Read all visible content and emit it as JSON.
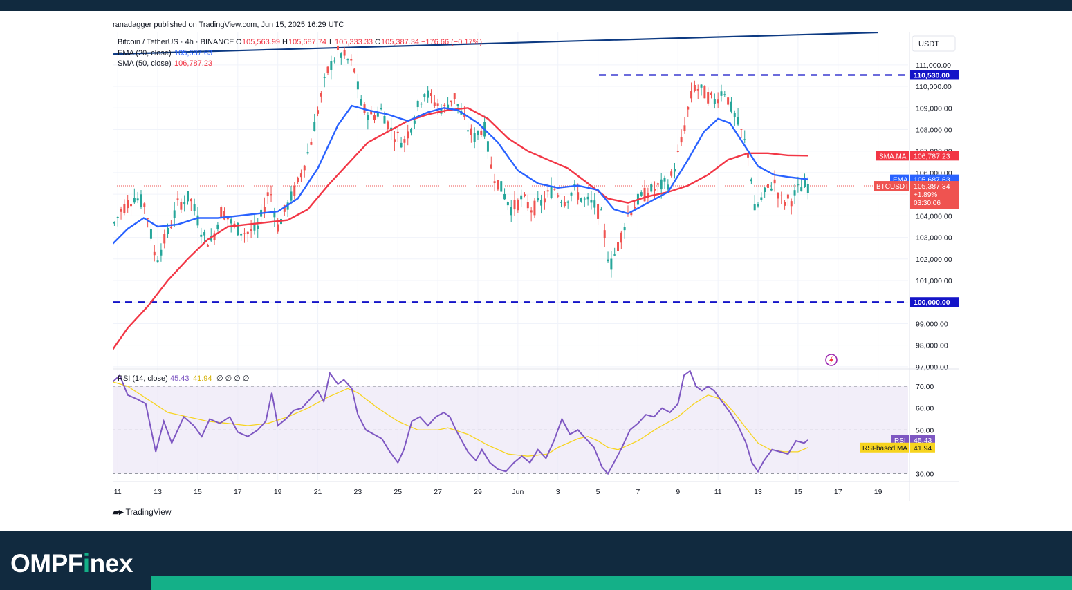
{
  "publisher_line": "ranadagger published on TradingView.com, Jun 15, 2025 16:29 UTC",
  "brand": {
    "part1": "OMPF",
    "accent": "i",
    "part2": "nex"
  },
  "tradingview_label": "TradingView",
  "colors": {
    "up": "#26a69a",
    "down": "#ef5350",
    "ema": "#2962ff",
    "sma": "#f23645",
    "trendline": "#0d3a82",
    "level": "#1414c8",
    "rsi": "#7e57c2",
    "rsi_ma": "#f7d41f",
    "rsi_band": "#ede7f6",
    "background_top": "#112a3f",
    "brand_accent": "#14b088"
  },
  "chart_data": {
    "type": "candlestick",
    "symbol_header": {
      "name": "Bitcoin / TetherUS · 4h · BINANCE",
      "open_label": "O",
      "open": "105,563.99",
      "high_label": "H",
      "high": "105,687.74",
      "low_label": "L",
      "low": "105,333.33",
      "close_label": "C",
      "close": "105,387.34",
      "change": "−176.66 (−0.17%)"
    },
    "indicators": [
      {
        "label": "EMA (20, close)",
        "value": "105,687.63"
      },
      {
        "label": "SMA (50, close)",
        "value": "106,787.23"
      }
    ],
    "y_axis": {
      "unit": "USDT",
      "range": [
        96900,
        112500
      ],
      "ticks": [
        "97,000.00",
        "98,000.00",
        "99,000.00",
        "100,000.00",
        "101,000.00",
        "102,000.00",
        "103,000.00",
        "104,000.00",
        "105,000.00",
        "106,000.00",
        "107,000.00",
        "108,000.00",
        "109,000.00",
        "110,000.00",
        "111,000.00"
      ]
    },
    "x_axis": {
      "range": [
        10.75,
        50.5
      ],
      "ticks": [
        {
          "t": 11,
          "label": "11"
        },
        {
          "t": 13,
          "label": "13"
        },
        {
          "t": 15,
          "label": "15"
        },
        {
          "t": 17,
          "label": "17"
        },
        {
          "t": 19,
          "label": "19"
        },
        {
          "t": 21,
          "label": "21"
        },
        {
          "t": 23,
          "label": "23"
        },
        {
          "t": 25,
          "label": "25"
        },
        {
          "t": 27,
          "label": "27"
        },
        {
          "t": 29,
          "label": "29"
        },
        {
          "t": 31,
          "label": "Jun"
        },
        {
          "t": 33,
          "label": "3"
        },
        {
          "t": 35,
          "label": "5"
        },
        {
          "t": 37,
          "label": "7"
        },
        {
          "t": 39,
          "label": "9"
        },
        {
          "t": 41,
          "label": "11"
        },
        {
          "t": 43,
          "label": "13"
        },
        {
          "t": 45,
          "label": "15"
        },
        {
          "t": 47,
          "label": "17"
        },
        {
          "t": 49,
          "label": "19"
        }
      ]
    },
    "price_path": [
      [
        10.75,
        103500
      ],
      [
        11.2,
        104300
      ],
      [
        11.8,
        104900
      ],
      [
        12.4,
        104500
      ],
      [
        12.9,
        101900
      ],
      [
        13.5,
        103200
      ],
      [
        14.0,
        104500
      ],
      [
        14.6,
        104900
      ],
      [
        15.3,
        103000
      ],
      [
        15.7,
        102800
      ],
      [
        16.2,
        104300
      ],
      [
        16.8,
        103500
      ],
      [
        17.4,
        103200
      ],
      [
        18.0,
        103400
      ],
      [
        18.6,
        105300
      ],
      [
        19.0,
        103500
      ],
      [
        19.5,
        104500
      ],
      [
        20.0,
        105500
      ],
      [
        20.6,
        107200
      ],
      [
        21.1,
        109300
      ],
      [
        21.5,
        110700
      ],
      [
        22.0,
        111600
      ],
      [
        22.4,
        111300
      ],
      [
        22.8,
        110900
      ],
      [
        23.2,
        109000
      ],
      [
        23.7,
        108600
      ],
      [
        24.2,
        108900
      ],
      [
        24.7,
        107900
      ],
      [
        25.3,
        107400
      ],
      [
        25.8,
        108500
      ],
      [
        26.3,
        109800
      ],
      [
        26.8,
        109300
      ],
      [
        27.3,
        108900
      ],
      [
        27.8,
        109600
      ],
      [
        28.4,
        108200
      ],
      [
        28.8,
        107600
      ],
      [
        29.3,
        108200
      ],
      [
        29.7,
        106100
      ],
      [
        30.2,
        105200
      ],
      [
        30.7,
        104300
      ],
      [
        31.2,
        104800
      ],
      [
        31.7,
        104300
      ],
      [
        32.2,
        104600
      ],
      [
        32.8,
        105300
      ],
      [
        33.3,
        104700
      ],
      [
        33.8,
        105200
      ],
      [
        34.3,
        104700
      ],
      [
        34.8,
        104500
      ],
      [
        35.2,
        103900
      ],
      [
        35.6,
        101600
      ],
      [
        36.0,
        102600
      ],
      [
        36.5,
        104100
      ],
      [
        37.0,
        104700
      ],
      [
        37.5,
        105100
      ],
      [
        38.0,
        105300
      ],
      [
        38.6,
        105600
      ],
      [
        39.1,
        107100
      ],
      [
        39.5,
        108900
      ],
      [
        39.8,
        110000
      ],
      [
        40.3,
        109700
      ],
      [
        40.8,
        109300
      ],
      [
        41.3,
        109900
      ],
      [
        41.7,
        108900
      ],
      [
        42.2,
        107800
      ],
      [
        42.6,
        106600
      ],
      [
        42.8,
        104200
      ],
      [
        43.0,
        104500
      ],
      [
        43.4,
        105100
      ],
      [
        43.8,
        105600
      ],
      [
        44.2,
        104600
      ],
      [
        44.7,
        104800
      ],
      [
        45.1,
        105300
      ],
      [
        45.5,
        105400
      ]
    ],
    "ema20": [
      [
        10.75,
        102700
      ],
      [
        11.5,
        103400
      ],
      [
        12.3,
        103900
      ],
      [
        13.0,
        103500
      ],
      [
        14.0,
        103600
      ],
      [
        15.0,
        103900
      ],
      [
        16.0,
        103900
      ],
      [
        17.0,
        104000
      ],
      [
        18.0,
        104100
      ],
      [
        19.0,
        104200
      ],
      [
        20.0,
        104800
      ],
      [
        21.0,
        106200
      ],
      [
        22.0,
        108200
      ],
      [
        22.7,
        109100
      ],
      [
        23.5,
        108900
      ],
      [
        24.5,
        108700
      ],
      [
        25.5,
        108400
      ],
      [
        26.5,
        108800
      ],
      [
        27.3,
        109000
      ],
      [
        28.0,
        108900
      ],
      [
        29.0,
        108300
      ],
      [
        30.0,
        107400
      ],
      [
        31.0,
        106100
      ],
      [
        32.0,
        105500
      ],
      [
        33.0,
        105300
      ],
      [
        34.0,
        105400
      ],
      [
        35.0,
        105200
      ],
      [
        35.8,
        104300
      ],
      [
        36.5,
        104100
      ],
      [
        37.5,
        104600
      ],
      [
        38.5,
        105100
      ],
      [
        39.5,
        106600
      ],
      [
        40.3,
        107900
      ],
      [
        41.0,
        108500
      ],
      [
        41.6,
        108300
      ],
      [
        42.3,
        107300
      ],
      [
        43.0,
        106300
      ],
      [
        43.8,
        105900
      ],
      [
        44.5,
        105800
      ],
      [
        45.5,
        105690
      ]
    ],
    "sma50": [
      [
        10.75,
        97800
      ],
      [
        11.5,
        98800
      ],
      [
        12.5,
        99800
      ],
      [
        13.5,
        101000
      ],
      [
        14.5,
        102000
      ],
      [
        15.5,
        102900
      ],
      [
        16.5,
        103500
      ],
      [
        17.5,
        103600
      ],
      [
        18.5,
        103700
      ],
      [
        19.5,
        103800
      ],
      [
        20.5,
        104300
      ],
      [
        21.5,
        105400
      ],
      [
        22.5,
        106400
      ],
      [
        23.5,
        107400
      ],
      [
        24.5,
        107900
      ],
      [
        25.5,
        108400
      ],
      [
        26.5,
        108700
      ],
      [
        27.5,
        108900
      ],
      [
        28.5,
        109000
      ],
      [
        29.5,
        108500
      ],
      [
        30.5,
        107600
      ],
      [
        31.5,
        107000
      ],
      [
        32.5,
        106600
      ],
      [
        33.5,
        106200
      ],
      [
        34.5,
        105500
      ],
      [
        35.5,
        104800
      ],
      [
        36.5,
        104600
      ],
      [
        37.5,
        104900
      ],
      [
        38.5,
        105100
      ],
      [
        39.5,
        105400
      ],
      [
        40.5,
        105900
      ],
      [
        41.5,
        106600
      ],
      [
        42.5,
        106900
      ],
      [
        43.5,
        106900
      ],
      [
        44.5,
        106800
      ],
      [
        45.5,
        106790
      ]
    ],
    "levels": [
      {
        "value": 110530,
        "label": "110,530.00",
        "from": 35.05
      },
      {
        "value": 100000,
        "label": "100,000.00",
        "from": 10.75
      }
    ],
    "trendline": {
      "from": [
        10.75,
        111500
      ],
      "to": [
        49.0,
        112500
      ]
    },
    "current_price_tag": {
      "symbol": "BTCUSDT",
      "price": "105,387.34",
      "change": "+1.89%",
      "countdown": "03:30:06"
    },
    "ema_tag": {
      "label": "EMA",
      "value": "105,687.63"
    },
    "sma_tag": {
      "label": "SMA:MA",
      "value": "106,787.23"
    },
    "rsi_panel": {
      "header_label": "RSI (14, close)",
      "rsi_value": "45.43",
      "ma_value": "41.94",
      "extra": "∅ ∅ ∅ ∅",
      "range": [
        27,
        77
      ],
      "ticks": [
        "30.00",
        "50.00",
        "60.00",
        "70.00"
      ],
      "band": [
        30,
        70
      ],
      "rsi_tag": {
        "label": "RSI",
        "value": "45.43"
      },
      "ma_tag": {
        "label": "RSI-based MA",
        "value": "41.94"
      },
      "rsi_points": [
        [
          10.75,
          72
        ],
        [
          11.1,
          75
        ],
        [
          11.5,
          66
        ],
        [
          12.0,
          64
        ],
        [
          12.4,
          62
        ],
        [
          12.9,
          40
        ],
        [
          13.3,
          54
        ],
        [
          13.7,
          44
        ],
        [
          14.3,
          56
        ],
        [
          14.8,
          52
        ],
        [
          15.2,
          47
        ],
        [
          15.6,
          55
        ],
        [
          16.1,
          53
        ],
        [
          16.6,
          56
        ],
        [
          17.0,
          49
        ],
        [
          17.5,
          47
        ],
        [
          18.0,
          50
        ],
        [
          18.4,
          54
        ],
        [
          18.7,
          67
        ],
        [
          19.0,
          52
        ],
        [
          19.4,
          55
        ],
        [
          19.8,
          59
        ],
        [
          20.2,
          60
        ],
        [
          20.6,
          64
        ],
        [
          21.0,
          68
        ],
        [
          21.3,
          63
        ],
        [
          21.6,
          76
        ],
        [
          22.0,
          71
        ],
        [
          22.3,
          73
        ],
        [
          22.7,
          69
        ],
        [
          23.0,
          57
        ],
        [
          23.4,
          50
        ],
        [
          23.8,
          48
        ],
        [
          24.2,
          46
        ],
        [
          24.6,
          40
        ],
        [
          25.0,
          35
        ],
        [
          25.3,
          41
        ],
        [
          25.7,
          54
        ],
        [
          26.1,
          56
        ],
        [
          26.5,
          52
        ],
        [
          26.9,
          56
        ],
        [
          27.3,
          58
        ],
        [
          27.6,
          56
        ],
        [
          27.9,
          50
        ],
        [
          28.2,
          45
        ],
        [
          28.5,
          40
        ],
        [
          28.9,
          36
        ],
        [
          29.2,
          41
        ],
        [
          29.6,
          35
        ],
        [
          30.0,
          32
        ],
        [
          30.4,
          31
        ],
        [
          30.8,
          35
        ],
        [
          31.2,
          38
        ],
        [
          31.6,
          35
        ],
        [
          32.0,
          41
        ],
        [
          32.4,
          37
        ],
        [
          32.8,
          45
        ],
        [
          33.2,
          55
        ],
        [
          33.6,
          48
        ],
        [
          34.0,
          50
        ],
        [
          34.4,
          46
        ],
        [
          34.8,
          42
        ],
        [
          35.2,
          33
        ],
        [
          35.5,
          30
        ],
        [
          35.8,
          35
        ],
        [
          36.2,
          42
        ],
        [
          36.6,
          50
        ],
        [
          37.0,
          53
        ],
        [
          37.4,
          57
        ],
        [
          37.8,
          56
        ],
        [
          38.2,
          60
        ],
        [
          38.6,
          58
        ],
        [
          39.0,
          62
        ],
        [
          39.3,
          75
        ],
        [
          39.6,
          77
        ],
        [
          39.9,
          70
        ],
        [
          40.2,
          68
        ],
        [
          40.5,
          70
        ],
        [
          40.8,
          68
        ],
        [
          41.2,
          63
        ],
        [
          41.6,
          58
        ],
        [
          42.0,
          52
        ],
        [
          42.4,
          44
        ],
        [
          42.7,
          35
        ],
        [
          43.0,
          31
        ],
        [
          43.3,
          36
        ],
        [
          43.7,
          41
        ],
        [
          44.1,
          40
        ],
        [
          44.5,
          39
        ],
        [
          44.9,
          45
        ],
        [
          45.3,
          44
        ],
        [
          45.5,
          45.4
        ]
      ],
      "ma_points": [
        [
          10.75,
          72
        ],
        [
          11.5,
          70
        ],
        [
          12.5,
          64
        ],
        [
          13.5,
          58
        ],
        [
          14.5,
          56
        ],
        [
          15.5,
          54
        ],
        [
          16.5,
          53
        ],
        [
          17.5,
          52
        ],
        [
          18.5,
          53
        ],
        [
          19.5,
          56
        ],
        [
          20.5,
          60
        ],
        [
          21.5,
          65
        ],
        [
          22.5,
          69
        ],
        [
          23.0,
          67
        ],
        [
          24.0,
          60
        ],
        [
          25.0,
          54
        ],
        [
          26.0,
          50
        ],
        [
          27.0,
          50
        ],
        [
          27.5,
          51
        ],
        [
          28.5,
          48
        ],
        [
          29.5,
          43
        ],
        [
          30.5,
          39
        ],
        [
          31.5,
          38
        ],
        [
          32.5,
          39
        ],
        [
          33.0,
          42
        ],
        [
          34.0,
          46
        ],
        [
          34.5,
          47
        ],
        [
          35.0,
          45
        ],
        [
          35.5,
          42
        ],
        [
          36.0,
          41
        ],
        [
          37.0,
          45
        ],
        [
          38.0,
          51
        ],
        [
          39.0,
          56
        ],
        [
          39.8,
          62
        ],
        [
          40.5,
          66
        ],
        [
          41.2,
          64
        ],
        [
          41.8,
          58
        ],
        [
          42.3,
          52
        ],
        [
          43.0,
          44
        ],
        [
          43.6,
          41
        ],
        [
          44.3,
          40
        ],
        [
          45.0,
          40
        ],
        [
          45.5,
          41.94
        ]
      ]
    }
  }
}
